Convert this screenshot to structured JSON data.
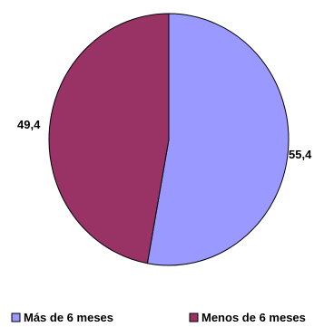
{
  "chart_data": {
    "type": "pie",
    "title": "",
    "categories": [
      "Más de 6 meses",
      "Menos de 6 meses"
    ],
    "values": [
      55.4,
      49.4
    ],
    "data_labels": [
      "55,4",
      "49,4"
    ],
    "colors": [
      "#9999ff",
      "#993366"
    ],
    "legend": {
      "placement": "bottom",
      "entries": [
        "Más de 6 meses",
        "Menos de 6 meses"
      ]
    },
    "start_angle_deg": 0,
    "direction": "clockwise"
  }
}
